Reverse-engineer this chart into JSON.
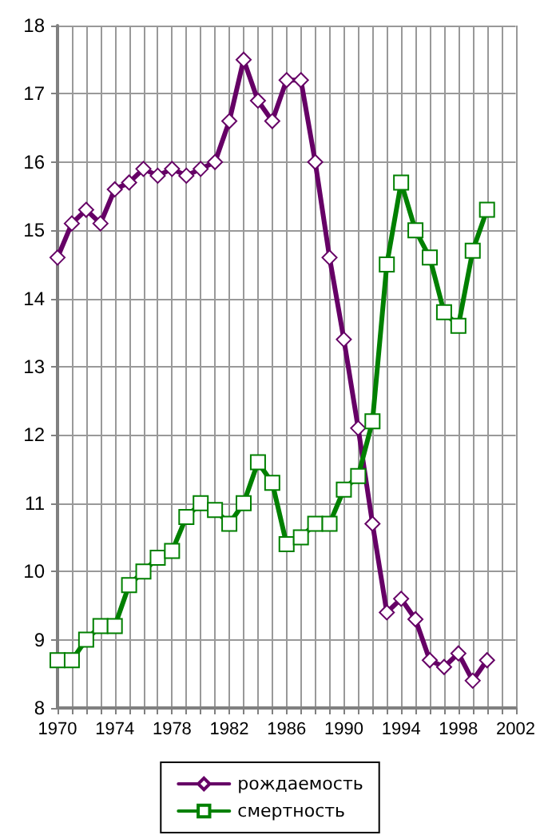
{
  "chart_data": {
    "type": "line",
    "x": [
      1970,
      1971,
      1972,
      1973,
      1974,
      1975,
      1976,
      1977,
      1978,
      1979,
      1980,
      1981,
      1982,
      1983,
      1984,
      1985,
      1986,
      1987,
      1988,
      1989,
      1990,
      1991,
      1992,
      1993,
      1994,
      1995,
      1996,
      1997,
      1998,
      1999,
      2000
    ],
    "series": [
      {
        "name": "рождаемость",
        "color": "#660066",
        "marker": "diamond",
        "values": [
          14.6,
          15.1,
          15.3,
          15.1,
          15.6,
          15.7,
          15.9,
          15.8,
          15.9,
          15.8,
          15.9,
          16.0,
          16.6,
          17.5,
          16.9,
          16.6,
          17.2,
          17.2,
          16.0,
          14.6,
          13.4,
          12.1,
          10.7,
          9.4,
          9.6,
          9.3,
          8.7,
          8.6,
          8.8,
          8.4,
          8.7
        ]
      },
      {
        "name": "смертность",
        "color": "#008000",
        "marker": "square",
        "values": [
          8.7,
          8.7,
          9.0,
          9.2,
          9.2,
          9.8,
          10.0,
          10.2,
          10.3,
          10.8,
          11.0,
          10.9,
          10.7,
          11.0,
          11.6,
          11.3,
          10.4,
          10.5,
          10.7,
          10.7,
          11.2,
          11.4,
          12.2,
          14.5,
          15.7,
          15.0,
          14.6,
          13.8,
          13.6,
          14.7,
          15.3
        ]
      }
    ],
    "xlim": [
      1970,
      2002
    ],
    "xticks": [
      1970,
      {
        "value": 1971,
        "label": null
      },
      {
        "value": 1972,
        "label": null
      },
      {
        "value": 1973,
        "label": null
      },
      1974,
      {
        "value": 1975,
        "label": null
      },
      {
        "value": 1976,
        "label": null
      },
      {
        "value": 1977,
        "label": null
      },
      1978,
      {
        "value": 1979,
        "label": null
      },
      {
        "value": 1980,
        "label": null
      },
      {
        "value": 1981,
        "label": null
      },
      1982,
      {
        "value": 1983,
        "label": null
      },
      {
        "value": 1984,
        "label": null
      },
      {
        "value": 1985,
        "label": null
      },
      1986,
      {
        "value": 1987,
        "label": null
      },
      {
        "value": 1988,
        "label": null
      },
      {
        "value": 1989,
        "label": null
      },
      1990,
      {
        "value": 1991,
        "label": null
      },
      {
        "value": 1992,
        "label": null
      },
      {
        "value": 1993,
        "label": null
      },
      1994,
      {
        "value": 1995,
        "label": null
      },
      {
        "value": 1996,
        "label": null
      },
      {
        "value": 1997,
        "label": null
      },
      1998,
      {
        "value": 1999,
        "label": null
      },
      {
        "value": 2000,
        "label": null
      },
      {
        "value": 2001,
        "label": null
      },
      2002
    ],
    "ylim": [
      8,
      18
    ],
    "yticks": [
      8,
      9,
      10,
      11,
      12,
      13,
      14,
      15,
      16,
      17,
      18
    ],
    "grid": true,
    "legend": "bottom",
    "line_style": "solid"
  }
}
